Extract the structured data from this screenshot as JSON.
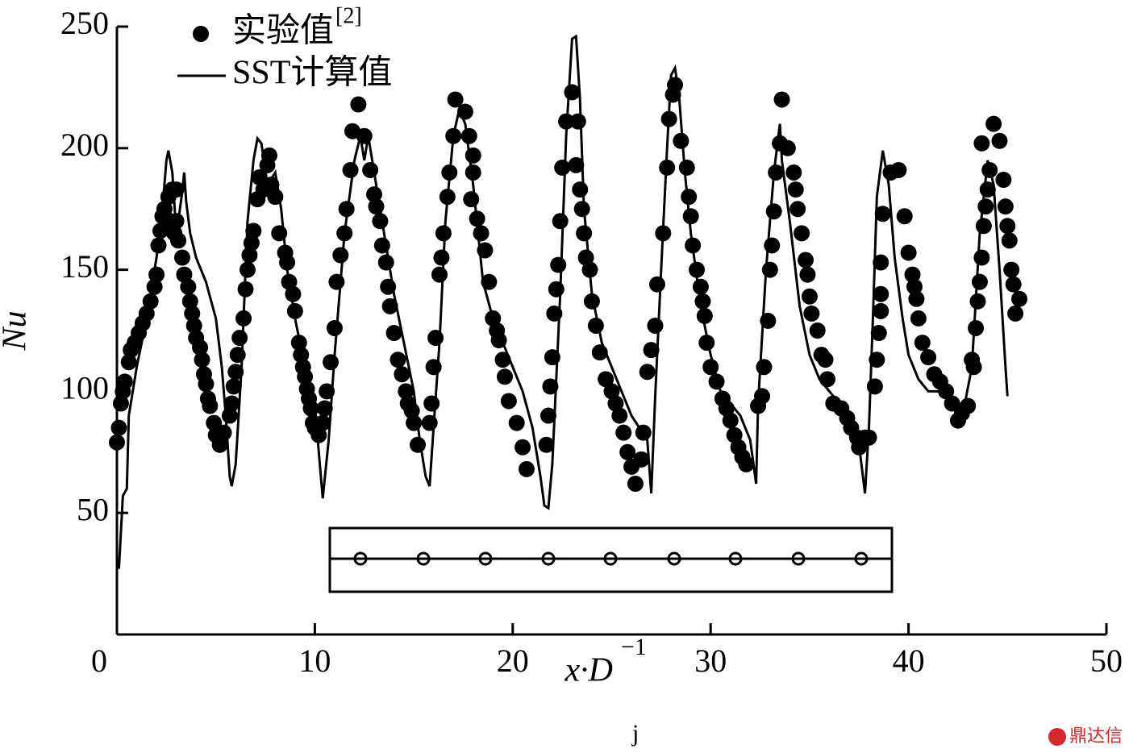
{
  "chart_data": {
    "type": "scatter",
    "x_label": {
      "main": "x·D",
      "sup": "−1",
      "sub": "j"
    },
    "y_label": "Nu",
    "xlim": [
      0,
      50
    ],
    "xticks": [
      0,
      10,
      20,
      30,
      40,
      50
    ],
    "ylim": [
      0,
      250
    ],
    "yticks": [
      50,
      100,
      150,
      200,
      250
    ],
    "watermark": "鼎达信",
    "series": [
      {
        "name": "实验值",
        "name_sup": "[2]",
        "style": "marker",
        "color": "#000000",
        "x": [
          0,
          0.1,
          0.2,
          0.3,
          0.4,
          0.6,
          0.7,
          0.9,
          1.1,
          1.3,
          1.5,
          1.7,
          1.9,
          2.0,
          2.1,
          2.2,
          2.3,
          2.4,
          2.6,
          2.8,
          3.0,
          2.7,
          2.9,
          3.0,
          3.1,
          3.3,
          3.4,
          3.6,
          3.7,
          3.8,
          3.9,
          4.0,
          4.2,
          4.3,
          4.4,
          4.5,
          4.6,
          4.7,
          4.9,
          5.0,
          5.2,
          5.4,
          5.7,
          5.8,
          5.9,
          6.0,
          6.1,
          6.2,
          6.4,
          6.5,
          6.6,
          6.7,
          6.8,
          6.9,
          7.1,
          7.2,
          7.4,
          7.6,
          7.7,
          7.8,
          8.0,
          8.2,
          8.5,
          8.6,
          8.7,
          8.9,
          9.0,
          9.2,
          9.3,
          9.4,
          9.5,
          9.6,
          9.7,
          9.8,
          9.9,
          10.0,
          10.2,
          10.4,
          10.5,
          10.6,
          10.8,
          11.0,
          11.1,
          11.3,
          11.5,
          11.6,
          11.8,
          11.9,
          12.2,
          12.5,
          12.8,
          13.0,
          13.1,
          13.3,
          13.4,
          13.6,
          13.7,
          13.8,
          14.0,
          14.2,
          14.4,
          14.6,
          14.7,
          14.9,
          15.0,
          15.2,
          15.8,
          15.9,
          16.0,
          16.1,
          16.3,
          16.4,
          16.5,
          16.7,
          16.8,
          17.0,
          17.1,
          17.6,
          17.8,
          18.0,
          18.0,
          17.9,
          18.2,
          18.4,
          18.6,
          18.8,
          19.0,
          19.2,
          19.3,
          19.5,
          19.6,
          19.8,
          20.2,
          20.5,
          20.7,
          21.7,
          21.8,
          21.9,
          22.0,
          22.1,
          22.2,
          22.3,
          22.4,
          22.5,
          22.7,
          23.0,
          23.3,
          23.2,
          23.4,
          23.5,
          23.6,
          23.7,
          23.9,
          24.0,
          24.2,
          24.4,
          24.7,
          25.0,
          25.2,
          25.4,
          25.6,
          25.8,
          26.0,
          26.2,
          26.5,
          26.6,
          26.8,
          27.0,
          27.2,
          27.3,
          27.6,
          27.8,
          27.9,
          28.1,
          28.2,
          28.5,
          28.8,
          28.9,
          29.0,
          29.1,
          29.3,
          29.5,
          29.6,
          29.7,
          29.8,
          30.0,
          30.3,
          30.6,
          30.8,
          31.0,
          31.2,
          31.4,
          31.6,
          31.8,
          32.4,
          32.6,
          32.7,
          32.9,
          33.0,
          33.1,
          33.2,
          33.3,
          33.5,
          33.6,
          33.9,
          34.2,
          34.3,
          34.4,
          34.6,
          34.8,
          34.9,
          35.0,
          35.1,
          35.4,
          35.6,
          35.8,
          35.9,
          36.2,
          36.6,
          36.9,
          37.1,
          37.4,
          37.5,
          37.8,
          38.0,
          38.3,
          38.4,
          38.5,
          38.6,
          38.6,
          38.6,
          38.7,
          39.1,
          39.5,
          39.8,
          40.0,
          40.2,
          40.3,
          40.4,
          40.5,
          40.7,
          41.0,
          41.3,
          41.6,
          41.9,
          42.2,
          42.5,
          42.7,
          43.0,
          43.2,
          43.3,
          43.4,
          43.5,
          43.6,
          43.7,
          43.8,
          43.9,
          44.0,
          44.1,
          43.7,
          44.3,
          44.6,
          44.8,
          44.9,
          45.0,
          45.1,
          45.2,
          45.3,
          45.4,
          45.6
        ],
        "values": [
          79,
          85,
          95,
          100,
          104,
          112,
          117,
          120,
          124,
          128,
          132,
          137,
          143,
          148,
          160,
          166,
          172,
          175,
          180,
          183,
          183,
          170,
          165,
          170,
          162,
          155,
          148,
          143,
          137,
          132,
          127,
          122,
          118,
          113,
          107,
          103,
          97,
          94,
          87,
          82,
          78,
          83,
          90,
          95,
          102,
          108,
          115,
          122,
          130,
          142,
          150,
          156,
          161,
          166,
          179,
          188,
          183,
          193,
          197,
          185,
          180,
          165,
          157,
          153,
          145,
          140,
          133,
          120,
          115,
          110,
          106,
          101,
          97,
          93,
          87,
          85,
          82,
          87,
          93,
          100,
          112,
          126,
          145,
          156,
          165,
          175,
          191,
          207,
          218,
          205,
          191,
          181,
          176,
          170,
          160,
          153,
          143,
          135,
          124,
          113,
          107,
          100,
          95,
          92,
          87,
          78,
          87,
          95,
          110,
          122,
          148,
          155,
          165,
          180,
          190,
          205,
          220,
          215,
          205,
          197,
          190,
          179,
          171,
          165,
          158,
          145,
          130,
          125,
          121,
          113,
          106,
          96,
          87,
          77,
          68,
          78,
          90,
          102,
          114,
          132,
          142,
          152,
          170,
          192,
          211,
          223,
          211,
          193,
          183,
          175,
          165,
          155,
          150,
          137,
          127,
          116,
          105,
          100,
          95,
          90,
          83,
          75,
          69,
          62,
          72,
          83,
          108,
          117,
          127,
          144,
          165,
          192,
          212,
          222,
          226,
          203,
          192,
          180,
          172,
          160,
          150,
          143,
          137,
          131,
          120,
          110,
          104,
          97,
          93,
          88,
          82,
          77,
          73,
          70,
          94,
          98,
          110,
          129,
          150,
          160,
          174,
          190,
          202,
          220,
          200,
          190,
          183,
          175,
          165,
          154,
          148,
          139,
          132,
          125,
          115,
          113,
          105,
          95,
          93,
          89,
          85,
          81,
          77,
          81,
          81,
          102,
          113,
          124,
          133,
          140,
          153,
          173,
          190,
          191,
          172,
          157,
          148,
          143,
          138,
          130,
          120,
          114,
          107,
          104,
          100,
          95,
          88,
          91,
          94,
          113,
          110,
          126,
          137,
          145,
          155,
          168,
          176,
          183,
          191,
          202,
          210,
          203,
          187,
          176,
          168,
          162,
          150,
          144,
          132,
          138
        ]
      },
      {
        "name": "SST计算值",
        "style": "line",
        "color": "#000000",
        "x": [
          0.1,
          0.3,
          0.5,
          0.6,
          1.0,
          1.5,
          2.0,
          2.3,
          2.5,
          2.6,
          2.8,
          3.0,
          3.1,
          3.3,
          3.4,
          3.5,
          3.7,
          4.0,
          4.5,
          5.0,
          5.3,
          5.5,
          5.7,
          5.8,
          6.0,
          6.3,
          6.6,
          6.9,
          7.1,
          7.3,
          7.6,
          8.0,
          8.3,
          8.6,
          9.0,
          9.5,
          10.0,
          10.2,
          10.4,
          10.7,
          11.0,
          11.5,
          12.0,
          12.3,
          12.5,
          12.7,
          13.0,
          13.5,
          14.0,
          14.5,
          15.0,
          15.3,
          15.6,
          15.8,
          16.0,
          16.3,
          16.6,
          17.0,
          17.3,
          17.6,
          18.0,
          18.5,
          19.0,
          20.0,
          20.5,
          21.0,
          21.4,
          21.6,
          21.8,
          22.0,
          22.4,
          22.7,
          23.0,
          23.2,
          23.4,
          23.6,
          24.0,
          24.5,
          25.0,
          25.5,
          26.0,
          26.4,
          26.8,
          27.0,
          27.2,
          27.5,
          27.8,
          28.0,
          28.2,
          28.4,
          28.7,
          29.0,
          29.5,
          30.0,
          30.5,
          31.0,
          31.5,
          32.0,
          32.3,
          32.4,
          32.8,
          33.2,
          33.5,
          33.6,
          34.0,
          34.5,
          35.0,
          35.5,
          36.0,
          36.5,
          37.0,
          37.5,
          37.8,
          38.0,
          38.2,
          38.4,
          38.7,
          39.0,
          39.3,
          39.7,
          40.0,
          40.5,
          41.0,
          41.5,
          42.0,
          42.5,
          42.8,
          43.2,
          43.6,
          44.0,
          44.3,
          44.6,
          44.9,
          45.0
        ],
        "values": [
          27,
          57,
          60,
          90,
          110,
          130,
          155,
          175,
          195,
          199,
          190,
          165,
          170,
          182,
          190,
          178,
          165,
          155,
          145,
          130,
          110,
          90,
          65,
          61,
          70,
          110,
          170,
          195,
          204,
          202,
          185,
          190,
          175,
          150,
          130,
          110,
          95,
          75,
          56,
          80,
          115,
          165,
          195,
          205,
          195,
          205,
          190,
          165,
          140,
          120,
          100,
          80,
          65,
          61,
          85,
          120,
          170,
          205,
          216,
          210,
          185,
          145,
          130,
          110,
          100,
          85,
          65,
          53,
          52,
          70,
          140,
          205,
          245,
          246,
          220,
          175,
          140,
          120,
          110,
          100,
          90,
          85,
          80,
          58,
          98,
          150,
          200,
          230,
          233,
          222,
          190,
          165,
          135,
          115,
          100,
          95,
          90,
          80,
          62,
          95,
          150,
          190,
          210,
          195,
          170,
          135,
          115,
          105,
          100,
          95,
          88,
          78,
          58,
          85,
          130,
          180,
          199,
          185,
          155,
          130,
          115,
          105,
          100,
          100,
          97,
          90,
          93,
          110,
          165,
          195,
          185,
          150,
          110,
          98
        ]
      }
    ]
  }
}
